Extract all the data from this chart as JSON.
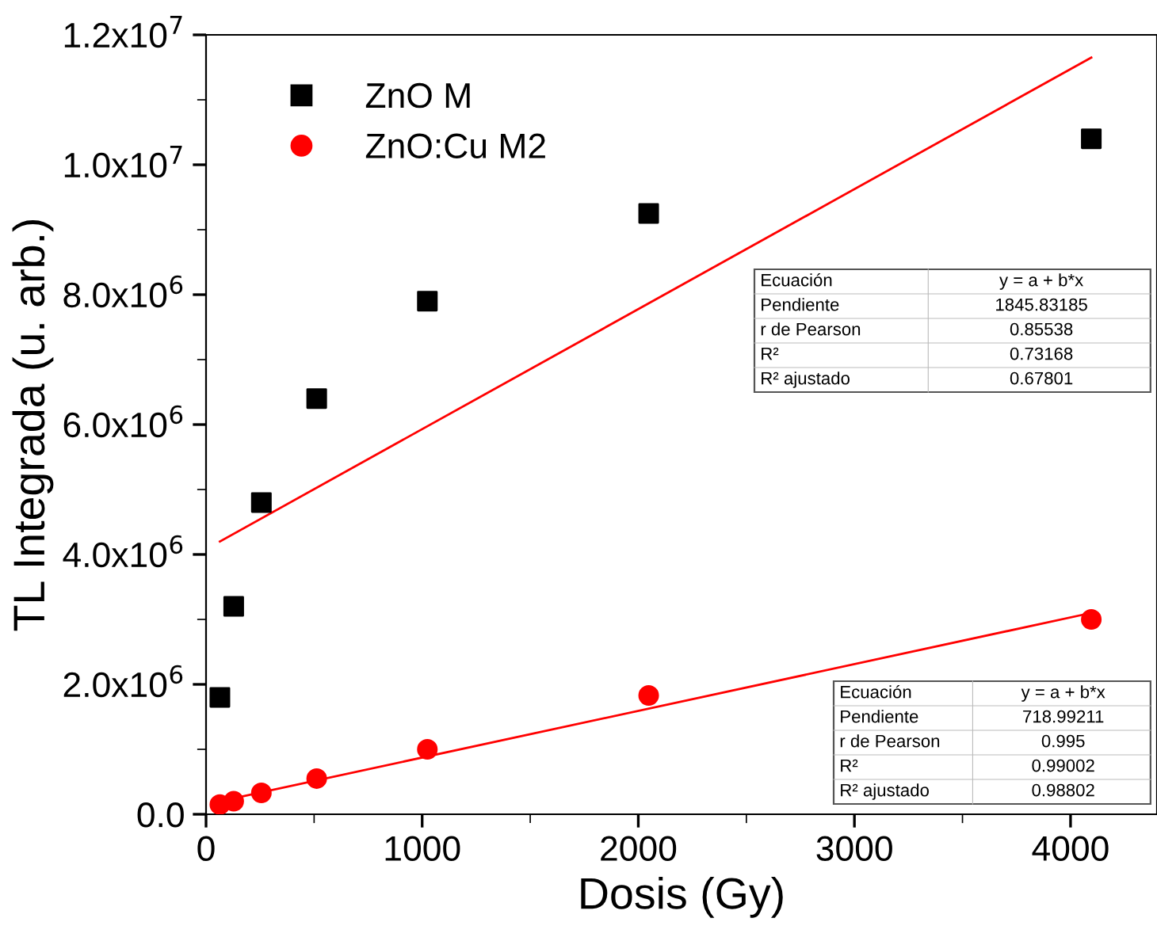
{
  "chart_data": {
    "type": "scatter",
    "xlabel": "Dosis (Gy)",
    "ylabel": "TL Integrada (u. arb.)",
    "xlim": [
      0,
      4400
    ],
    "xticks": [
      0,
      1000,
      2000,
      3000,
      4000
    ],
    "ylim": [
      0,
      12000000
    ],
    "yticks": [
      {
        "value": 0,
        "label": "0.0"
      },
      {
        "value": 2000000,
        "label": "2.0x10$^{6}$"
      },
      {
        "value": 4000000,
        "label": "4.0x10$^{6}$"
      },
      {
        "value": 6000000,
        "label": "6.0x10$^{6}$"
      },
      {
        "value": 8000000,
        "label": "8.0x10$^{6}$"
      },
      {
        "value": 10000000,
        "label": "1.0x10$^{7}$"
      },
      {
        "value": 12000000,
        "label": "1.2x10$^{7}$"
      }
    ],
    "grid": false,
    "legend": "top left",
    "series": [
      {
        "name": "ZnO M",
        "marker": "square",
        "color": "#000000",
        "x": [
          64,
          128,
          256,
          512,
          1024,
          2048,
          4096
        ],
        "values": [
          1800000,
          3200000,
          4800000,
          6400000,
          7900000,
          9250000,
          10400000
        ]
      },
      {
        "name": "ZnO:Cu M2",
        "marker": "circle",
        "color": "#ff0000",
        "x": [
          64,
          128,
          256,
          512,
          1024,
          2048,
          4096
        ],
        "values": [
          150000,
          200000,
          330000,
          550000,
          1000000,
          1830000,
          3000000
        ]
      },
      {
        "type": "line",
        "color": "#ff0000",
        "x": [
          64,
          4096
        ],
        "values": [
          4200000,
          11650000
        ]
      },
      {
        "type": "line",
        "color": "#ff0000",
        "x": [
          64,
          4096
        ],
        "values": [
          200000,
          3100000
        ]
      }
    ],
    "annotations": [
      "Ecuación",
      "y = a + b*x",
      "Pendiente",
      "1845.83185",
      "r de Pearson",
      "0.85538",
      "R²",
      "0.73168",
      "R² ajustado",
      "0.67801",
      "Ecuación",
      "y = a + b*x",
      "Pendiente",
      "718.99211",
      "r de Pearson",
      "0.995",
      "R²",
      "0.99002",
      "R² ajustado",
      "0.98802"
    ]
  }
}
